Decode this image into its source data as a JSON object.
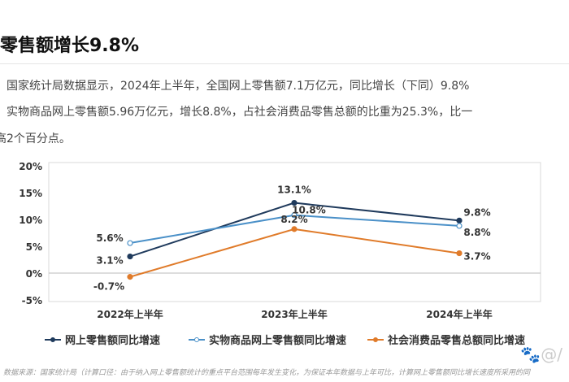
{
  "title": "零售额增长9.8%",
  "paragraphs": [
    "国家统计局数据显示，2024年上半年，全国网上零售额7.1万亿元，同比增长（下同）9.8%",
    "实物商品网上零售额5.96万亿元，增长8.8%，占社会消费品零售总额的比重为25.3%，比一",
    "高2个百分点。"
  ],
  "footnote": "数据来源：国家统计局（计算口径：由于纳入网上零售额统计的重点平台范围每年发生变化，为保证本年数据与上年可比，计算网上零售额同比增长速度所采用的同",
  "watermark": "@/",
  "chart_data": {
    "type": "line",
    "categories": [
      "2022年上半年",
      "2023年上半年",
      "2024年上半年"
    ],
    "yticks": [
      "20%",
      "15%",
      "10%",
      "5%",
      "0%",
      "-5%"
    ],
    "ylim": [
      -5,
      20
    ],
    "legend": "bottom",
    "series": [
      {
        "name": "网上零售额同比增速",
        "values": [
          3.1,
          13.1,
          9.8
        ],
        "labels": [
          "3.1%",
          "13.1%",
          "9.8%"
        ],
        "color": "#1f3a5c"
      },
      {
        "name": "实物商品网上零售额同比增速",
        "values": [
          5.6,
          10.8,
          8.8
        ],
        "labels": [
          "5.6%",
          "10.8%",
          "8.8%"
        ],
        "color": "#4a90c8"
      },
      {
        "name": "社会消费品零售总额同比增速",
        "values": [
          -0.7,
          8.2,
          3.7
        ],
        "labels": [
          "-0.7%",
          "8.2%",
          "3.7%"
        ],
        "color": "#e07b2a"
      }
    ]
  }
}
